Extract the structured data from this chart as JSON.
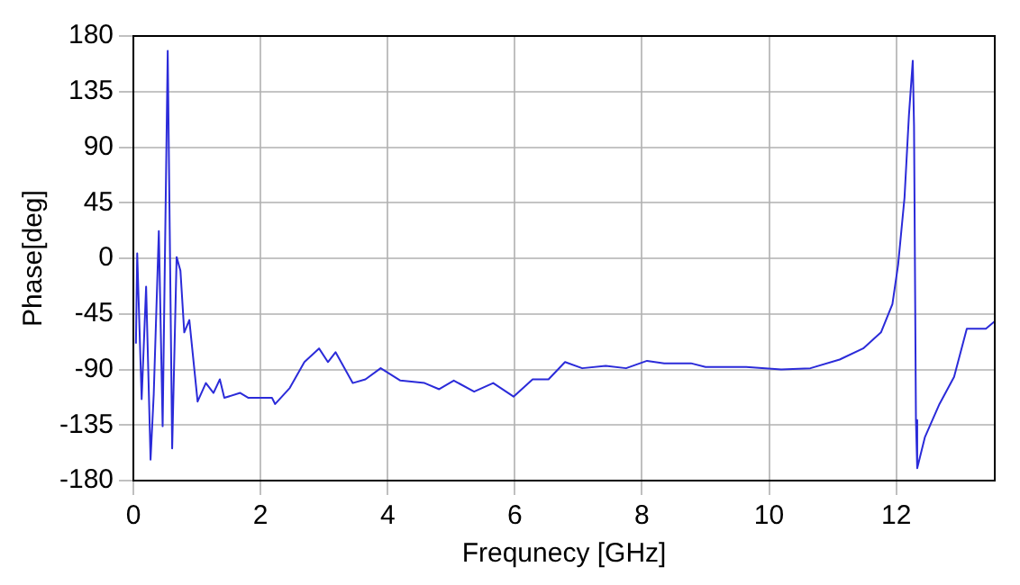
{
  "chart_data": {
    "type": "line",
    "xlabel": "Frequnecy [GHz]",
    "ylabel": "Phase[deg]",
    "xlim": [
      0,
      13.55
    ],
    "xticks": [
      0,
      2,
      4,
      6,
      8,
      10,
      12
    ],
    "ylim": [
      -180,
      180
    ],
    "yticks": [
      -180,
      -135,
      -90,
      -45,
      0,
      45,
      90,
      135,
      180
    ],
    "grid": true,
    "legend": false,
    "marker": "none",
    "line_style": "solid",
    "x": [
      0.04,
      0.06,
      0.13,
      0.2,
      0.27,
      0.32,
      0.4,
      0.46,
      0.54,
      0.61,
      0.68,
      0.74,
      0.8,
      0.88,
      1.01,
      1.14,
      1.26,
      1.36,
      1.43,
      1.68,
      1.81,
      2.18,
      2.23,
      2.46,
      2.69,
      2.92,
      3.06,
      3.18,
      3.45,
      3.65,
      3.89,
      4.2,
      4.58,
      4.81,
      5.04,
      5.36,
      5.66,
      5.98,
      6.28,
      6.53,
      6.79,
      7.06,
      7.43,
      7.75,
      8.08,
      8.35,
      8.77,
      9.0,
      9.64,
      10.19,
      10.65,
      11.11,
      11.48,
      11.76,
      11.94,
      12.03,
      12.13,
      12.2,
      12.26,
      12.28,
      12.31,
      12.33,
      12.45,
      12.68,
      12.91,
      13.11,
      13.41,
      13.55
    ],
    "series": [
      {
        "color": "#2b2bd9",
        "values": [
          -69,
          4,
          -114,
          -23,
          -163,
          -110,
          22,
          -136,
          168,
          -154,
          1,
          -10,
          -60,
          -50,
          -116,
          -101,
          -109,
          -98,
          -113,
          -109,
          -113,
          -113,
          -118,
          -105,
          -84,
          -73,
          -84,
          -76,
          -101,
          -98,
          -89,
          -99,
          -101,
          -106,
          -99,
          -108,
          -101,
          -112,
          -98,
          -98,
          -84,
          -89,
          -87,
          -89,
          -83,
          -85,
          -85,
          -88,
          -88,
          -90,
          -89,
          -82,
          -73,
          -60,
          -37,
          -5,
          49,
          116,
          160,
          107,
          -131,
          -170,
          -145,
          -118,
          -96,
          -57,
          -57,
          -51
        ]
      }
    ]
  }
}
